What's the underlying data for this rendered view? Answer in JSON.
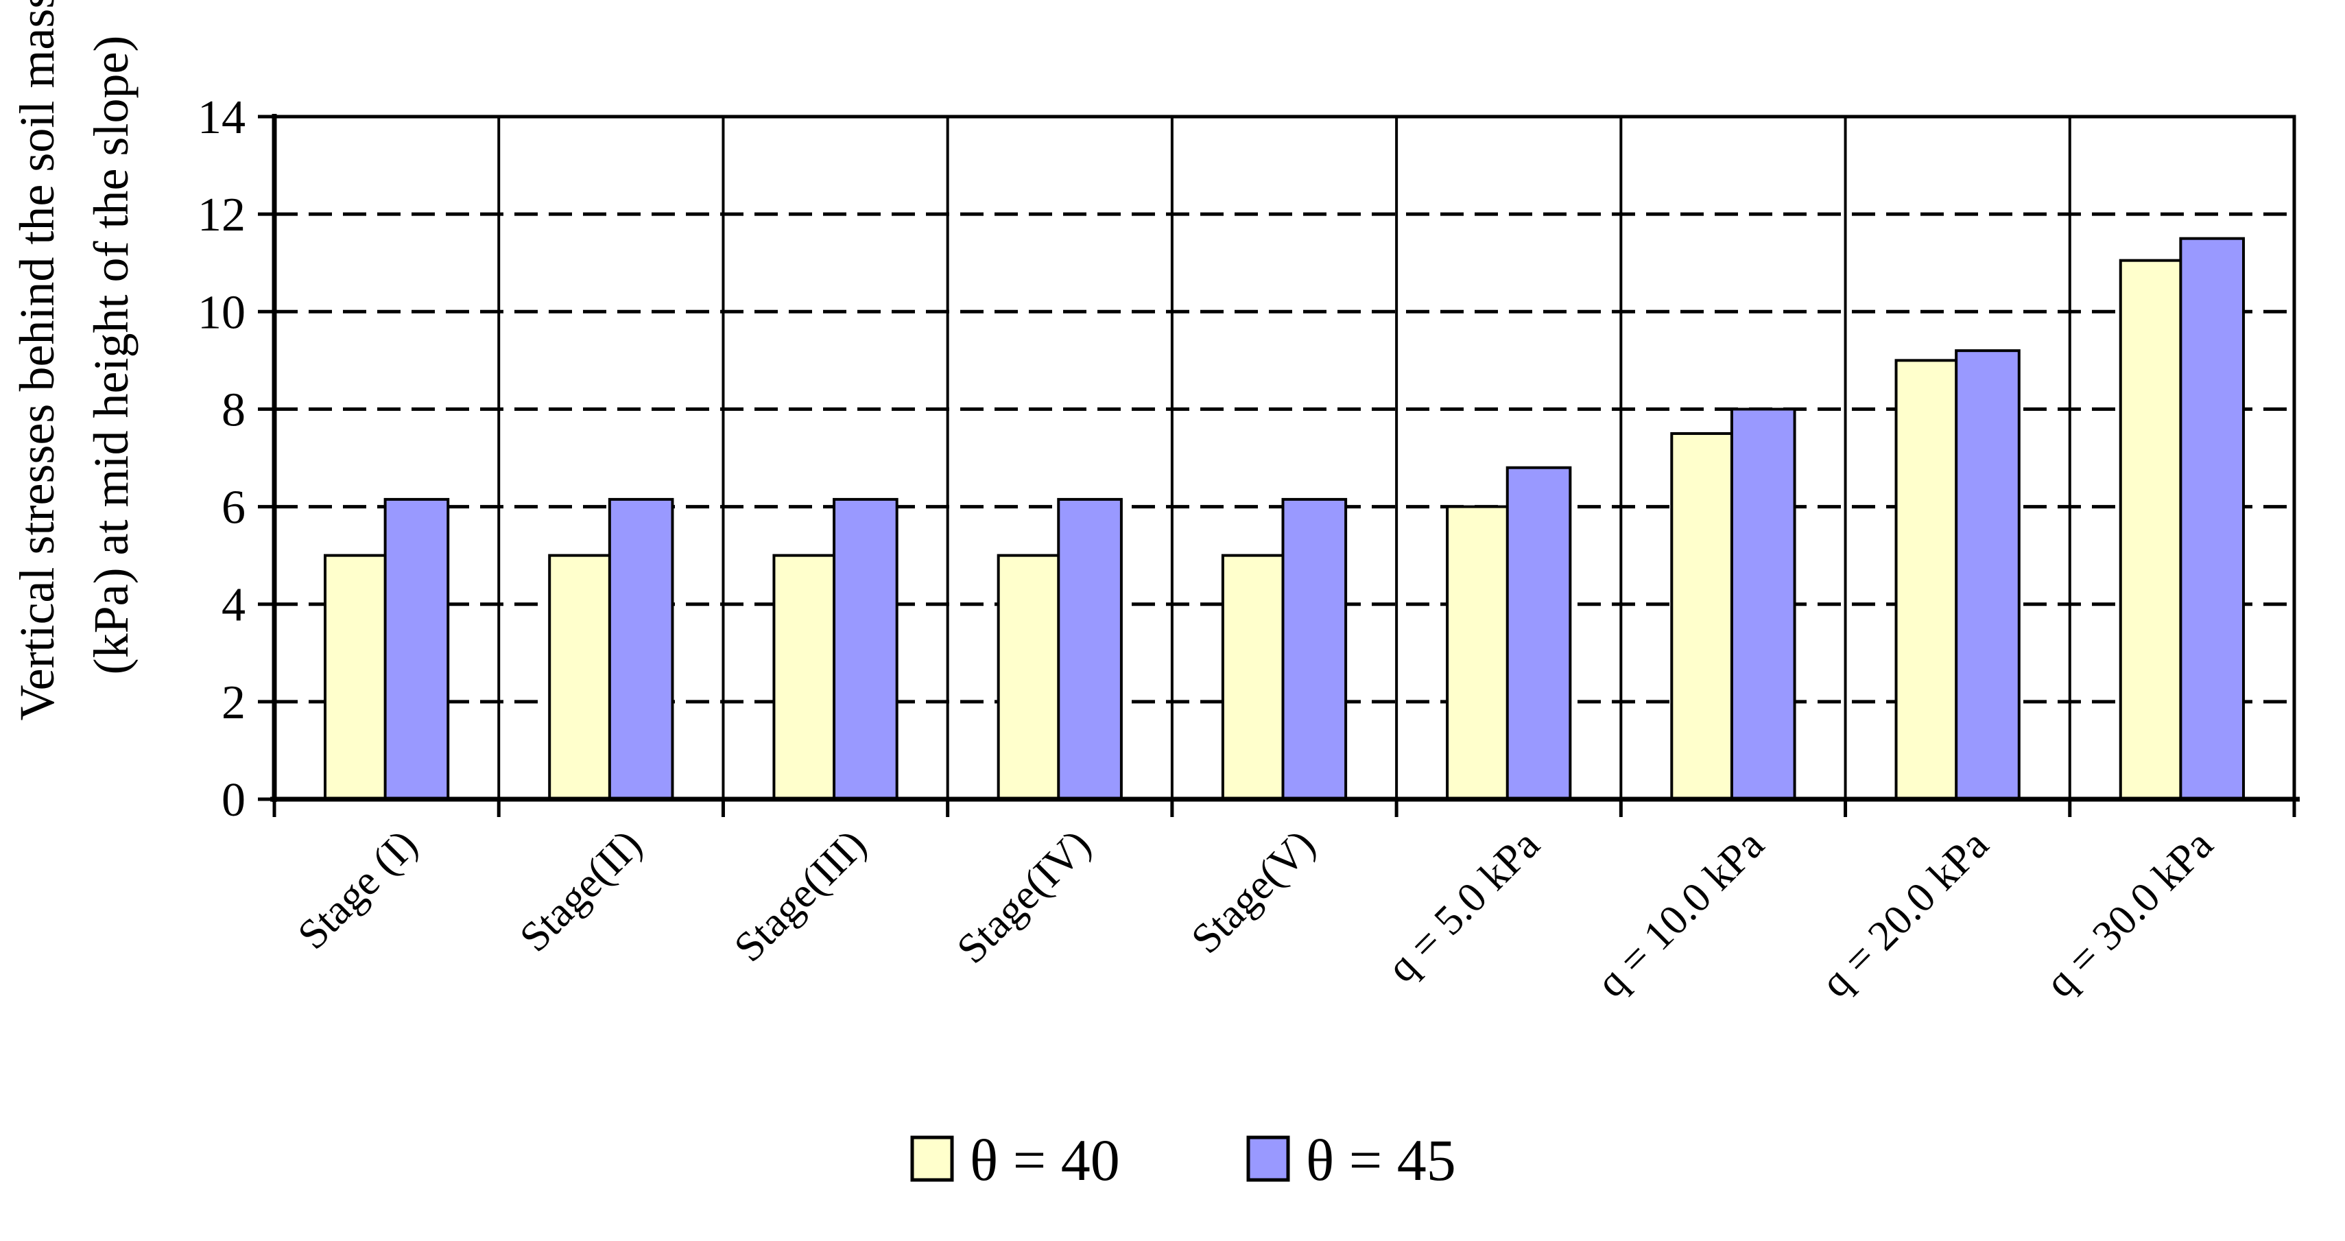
{
  "chart_data": {
    "type": "bar",
    "title": "",
    "xlabel": "",
    "ylabel_lines": [
      "Vertical stresses behind the soil mass",
      "(kPa) at mid height of the slope)"
    ],
    "categories": [
      "Stage (I)",
      "Stage(II)",
      "Stage(III)",
      "Stage(IV)",
      "Stage(V)",
      "q = 5.0 kPa",
      "q = 10.0 kPa",
      "q = 20.0 kPa",
      "q = 30.0 kPa"
    ],
    "series": [
      {
        "name": "θ = 40",
        "color": "#FFFFCC",
        "values": [
          5.0,
          5.0,
          5.0,
          5.0,
          5.0,
          6.0,
          7.5,
          9.0,
          11.05
        ]
      },
      {
        "name": "θ = 45",
        "color": "#9999FF",
        "values": [
          6.15,
          6.15,
          6.15,
          6.15,
          6.15,
          6.8,
          8.0,
          9.2,
          11.5
        ]
      }
    ],
    "ylim": [
      0,
      14
    ],
    "yticks": [
      "0",
      "2",
      "4",
      "6",
      "8",
      "10",
      "12",
      "14"
    ],
    "grid": "horizontal dashed",
    "legend_position": "bottom-center"
  }
}
